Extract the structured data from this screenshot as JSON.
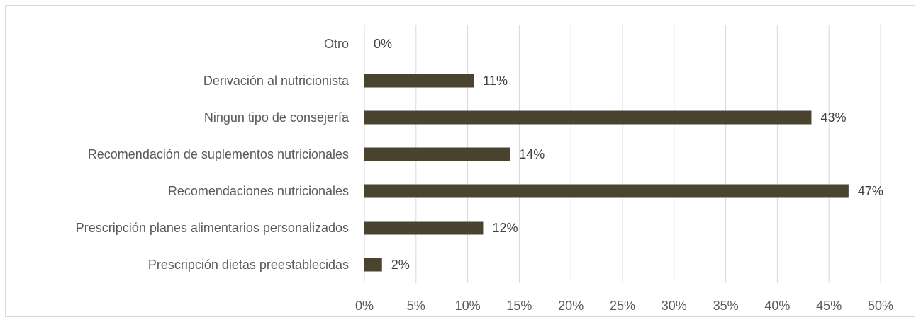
{
  "chart_data": {
    "type": "bar",
    "orientation": "horizontal",
    "categories": [
      "Otro",
      "Derivación al nutricionista",
      "Ningun tipo de consejería",
      "Recomendación de suplementos nutricionales",
      "Recomendaciones nutricionales",
      "Prescripción planes alimentarios personalizados",
      "Prescripción dietas preestablecidas"
    ],
    "values": [
      0,
      10.6,
      43.3,
      14.1,
      46.9,
      11.5,
      1.7
    ],
    "data_labels": [
      "0%",
      "11%",
      "43%",
      "14%",
      "47%",
      "12%",
      "2%"
    ],
    "xlim": [
      0,
      50
    ],
    "x_ticks": [
      0,
      5,
      10,
      15,
      20,
      25,
      30,
      35,
      40,
      45,
      50
    ],
    "x_tick_labels": [
      "0%",
      "5%",
      "10%",
      "15%",
      "20%",
      "25%",
      "30%",
      "35%",
      "40%",
      "45%",
      "50%"
    ],
    "title": "",
    "xlabel": "",
    "ylabel": "",
    "grid": "vertical",
    "legend": "none",
    "bar_color": "#4a4330",
    "grid_color": "#d9d9d9"
  }
}
